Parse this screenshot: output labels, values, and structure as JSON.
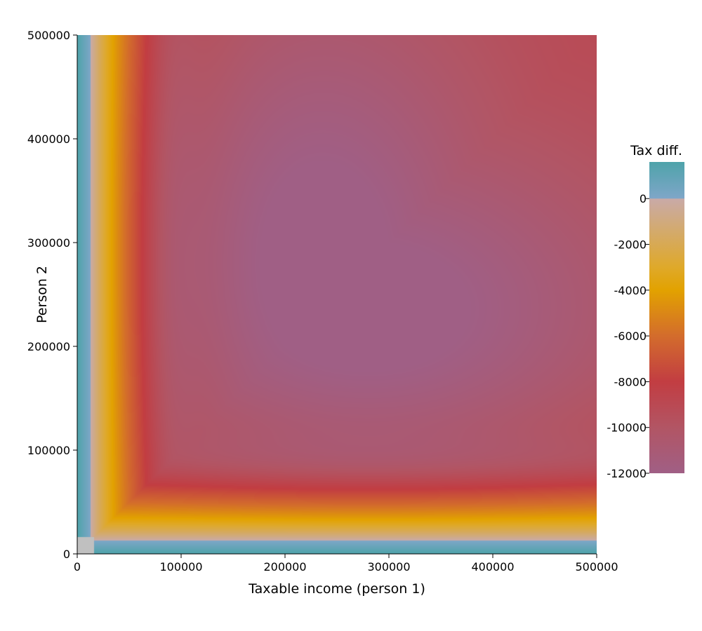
{
  "chart_data": {
    "type": "heatmap",
    "title": "",
    "xlabel": "Taxable income (person 1)",
    "ylabel": "Person 2",
    "xlim": [
      0,
      500000
    ],
    "ylim": [
      0,
      500000
    ],
    "x_ticks": [
      0,
      100000,
      200000,
      300000,
      400000,
      500000
    ],
    "x_tick_labels": [
      "0",
      "100000",
      "200000",
      "300000",
      "400000",
      "500000"
    ],
    "y_ticks": [
      0,
      100000,
      200000,
      300000,
      400000,
      500000
    ],
    "y_tick_labels": [
      "0",
      "100000",
      "200000",
      "300000",
      "400000",
      "500000"
    ],
    "grid": false,
    "colorbar": {
      "title": "Tax diff.",
      "range": [
        -12000,
        1600
      ],
      "ticks": [
        0,
        -2000,
        -4000,
        -6000,
        -8000,
        -10000,
        -12000
      ],
      "tick_labels": [
        "0",
        "-2000",
        "-4000",
        "-6000",
        "-8000",
        "-10000",
        "-12000"
      ],
      "color_stops": [
        {
          "value": 1600,
          "color": "#4ea3aa"
        },
        {
          "value": 0,
          "color": "#7fa6c8"
        },
        {
          "value": -1,
          "color": "#c9aaa8"
        },
        {
          "value": -3000,
          "color": "#dfa92a"
        },
        {
          "value": -4000,
          "color": "#e2a200"
        },
        {
          "value": -6000,
          "color": "#d36c2c"
        },
        {
          "value": -8000,
          "color": "#c23d42"
        },
        {
          "value": -10000,
          "color": "#b25564"
        },
        {
          "value": -12000,
          "color": "#a05f85"
        }
      ]
    },
    "no_data_color": "#c0c0c0",
    "no_data_region": {
      "x": [
        0,
        16000
      ],
      "y": [
        0,
        16000
      ]
    },
    "values_description_grid": {
      "x": [
        0,
        10000,
        50000,
        100000,
        200000,
        300000,
        400000,
        500000
      ],
      "y": [
        0,
        10000,
        50000,
        100000,
        200000,
        300000,
        400000,
        500000
      ]
    }
  }
}
